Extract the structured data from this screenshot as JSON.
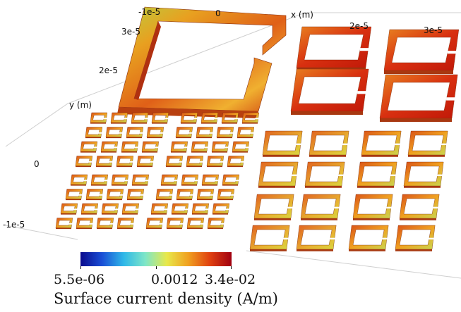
{
  "axes": {
    "x_axis_label": "x (m)",
    "y_axis_label": "y (m)",
    "x_ticks": [
      "-1e-5",
      "0",
      "2e-5",
      "3e-5"
    ],
    "y_ticks": [
      "3e-5",
      "2e-5",
      "0",
      "-1e-5"
    ]
  },
  "colorbar": {
    "min_label": "5.5e-06",
    "mid_label": "0.0012",
    "max_label": "3.4e-02",
    "title": "Surface current density (A/m)",
    "colors": [
      "#0a0a8c",
      "#1a4fd6",
      "#2fb8e8",
      "#7ee6c8",
      "#e8e84a",
      "#f0a020",
      "#e04010",
      "#a00010"
    ]
  },
  "scene": {
    "description_colors": {
      "low": "#d8e040",
      "mid": "#f0a020",
      "high": "#c82008"
    }
  }
}
